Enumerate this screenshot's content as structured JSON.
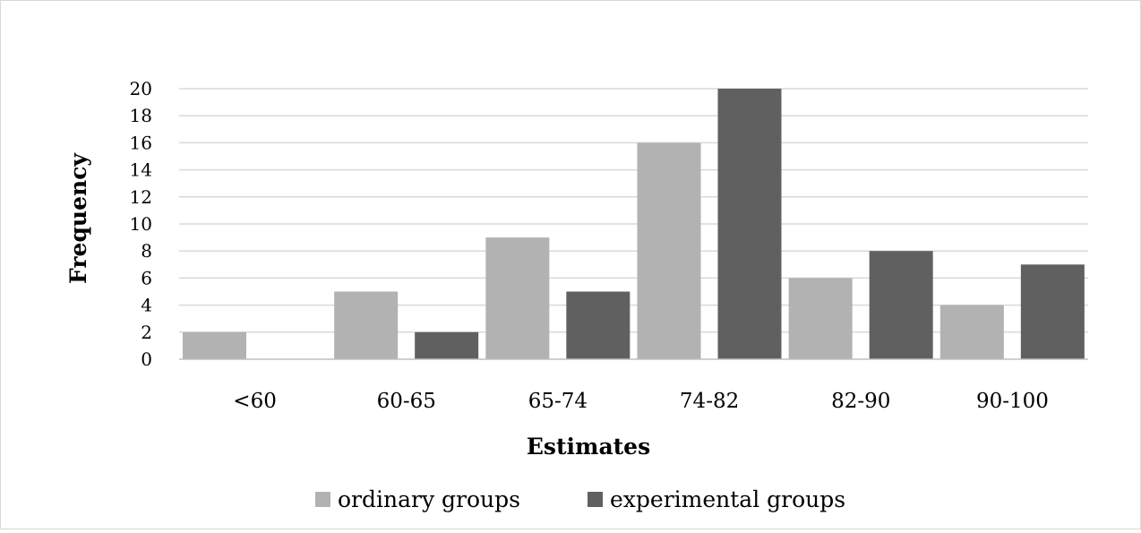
{
  "chart_data": {
    "type": "bar",
    "title": "",
    "xlabel": "Estimates",
    "ylabel": "Frequency",
    "categories": [
      "<60",
      "60-65",
      "65-74",
      "74-82",
      "82-90",
      "90-100"
    ],
    "series": [
      {
        "name": "ordinary groups",
        "values": [
          2,
          5,
          9,
          16,
          6,
          4
        ],
        "color": "#b2b2b2"
      },
      {
        "name": "experimental groups",
        "values": [
          0,
          2,
          5,
          20,
          8,
          7
        ],
        "color": "#606060"
      }
    ],
    "y_ticks": [
      "0",
      "2",
      "4",
      "6",
      "8",
      "10",
      "12",
      "14",
      "16",
      "18",
      "20"
    ],
    "ylim": [
      0,
      20
    ],
    "grid": true,
    "legend_position": "bottom"
  }
}
